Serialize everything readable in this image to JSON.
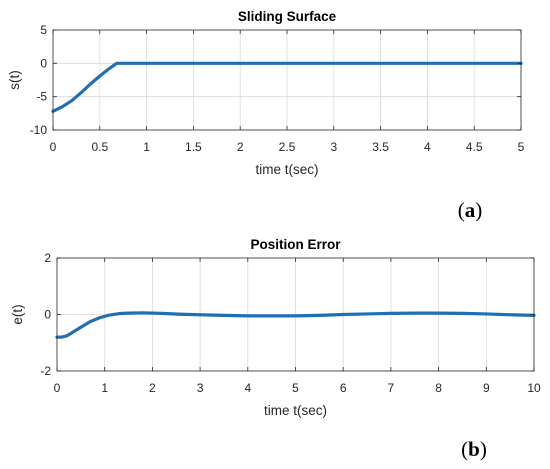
{
  "chart_data": [
    {
      "type": "line",
      "title": "Sliding Surface",
      "xlabel": "time t(sec)",
      "ylabel": "s(t)",
      "xlim": [
        0,
        5
      ],
      "ylim": [
        -10,
        5
      ],
      "xticks": [
        0,
        0.5,
        1,
        1.5,
        2,
        2.5,
        3,
        3.5,
        4,
        4.5,
        5
      ],
      "xtick_labels": [
        "0",
        "0.5",
        "1",
        "1.5",
        "2",
        "2.5",
        "3",
        "3.5",
        "4",
        "4.5",
        "5"
      ],
      "yticks": [
        -10,
        -5,
        0,
        5
      ],
      "ytick_labels": [
        "-10",
        "-5",
        "0",
        "5"
      ],
      "grid": true,
      "panel_label": {
        "open": "(",
        "letter": "a",
        "close": ")"
      },
      "series": [
        {
          "color": "#1f6fb4",
          "x": [
            0,
            0.1,
            0.2,
            0.3,
            0.4,
            0.5,
            0.6,
            0.68,
            1,
            2,
            3,
            4,
            5
          ],
          "y": [
            -7.2,
            -6.5,
            -5.6,
            -4.4,
            -3.1,
            -1.9,
            -0.8,
            0,
            0,
            0,
            0,
            0,
            0
          ]
        }
      ]
    },
    {
      "type": "line",
      "title": "Position Error",
      "xlabel": "time t(sec)",
      "ylabel": "e(t)",
      "xlim": [
        0,
        10
      ],
      "ylim": [
        -2,
        2
      ],
      "xticks": [
        0,
        1,
        2,
        3,
        4,
        5,
        6,
        7,
        8,
        9,
        10
      ],
      "xtick_labels": [
        "0",
        "1",
        "2",
        "3",
        "4",
        "5",
        "6",
        "7",
        "8",
        "9",
        "10"
      ],
      "yticks": [
        -2,
        0,
        2
      ],
      "ytick_labels": [
        "-2",
        "0",
        "2"
      ],
      "grid": true,
      "panel_label": {
        "open": "(",
        "letter": "b",
        "close": ")"
      },
      "series": [
        {
          "color": "#1f6fb4",
          "x": [
            0,
            0.1,
            0.2,
            0.3,
            0.5,
            0.7,
            0.9,
            1.1,
            1.3,
            1.5,
            1.8,
            2.2,
            2.6,
            3,
            3.5,
            4,
            4.5,
            5,
            5.5,
            6,
            6.5,
            7,
            7.5,
            8,
            8.5,
            9,
            9.5,
            10
          ],
          "y": [
            -0.8,
            -0.8,
            -0.76,
            -0.66,
            -0.45,
            -0.25,
            -0.11,
            -0.02,
            0.03,
            0.05,
            0.06,
            0.04,
            0.01,
            -0.01,
            -0.03,
            -0.05,
            -0.05,
            -0.05,
            -0.03,
            0.0,
            0.02,
            0.04,
            0.05,
            0.05,
            0.04,
            0.02,
            -0.01,
            -0.03
          ]
        }
      ]
    }
  ]
}
